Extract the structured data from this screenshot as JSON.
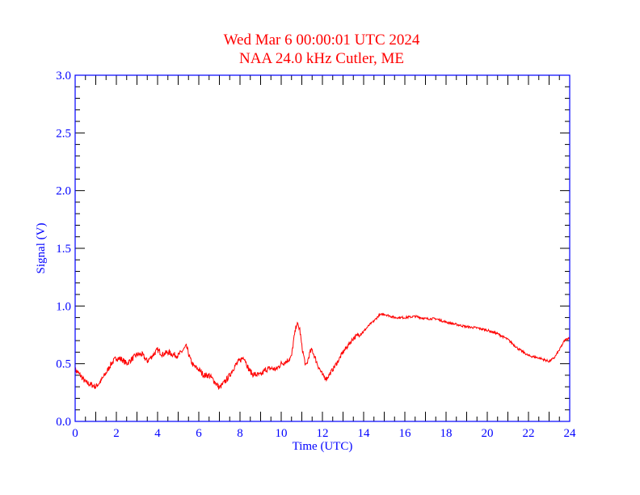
{
  "chart_data": {
    "type": "line",
    "title": "Wed Mar 6 00:00:01 UTC 2024",
    "subtitle": "NAA 24.0 kHz Cutler, ME",
    "xlabel": "Time (UTC)",
    "ylabel": "Signal (V)",
    "xlim": [
      0,
      24
    ],
    "ylim": [
      0,
      3.0
    ],
    "xticks": [
      "0",
      "2",
      "4",
      "6",
      "8",
      "10",
      "12",
      "14",
      "16",
      "18",
      "20",
      "22",
      "24"
    ],
    "yticks": [
      "0.0",
      "0.5",
      "1.0",
      "1.5",
      "2.0",
      "2.5",
      "3.0"
    ],
    "grid": false,
    "colors": {
      "line": "#ff0000",
      "title": "#ff0000",
      "axis": "#0000ff",
      "ticks": "#000000"
    },
    "series": [
      {
        "name": "NAA signal",
        "x": [
          0,
          0.25,
          0.5,
          0.75,
          1.0,
          1.25,
          1.5,
          1.75,
          2.0,
          2.25,
          2.5,
          2.75,
          3.0,
          3.25,
          3.5,
          3.75,
          4.0,
          4.25,
          4.5,
          4.75,
          5.0,
          5.25,
          5.4,
          5.6,
          5.75,
          6.0,
          6.25,
          6.5,
          6.75,
          7.0,
          7.25,
          7.5,
          7.75,
          8.0,
          8.2,
          8.4,
          8.6,
          9.0,
          9.25,
          9.5,
          9.75,
          10.0,
          10.25,
          10.5,
          10.6,
          10.75,
          10.9,
          11.0,
          11.2,
          11.4,
          11.5,
          11.75,
          12.0,
          12.2,
          12.5,
          12.75,
          13.0,
          13.25,
          13.5,
          13.75,
          14.0,
          14.25,
          14.5,
          14.75,
          15.0,
          15.5,
          16.0,
          16.5,
          17.0,
          17.5,
          18.0,
          18.5,
          19.0,
          19.5,
          20.0,
          20.5,
          21.0,
          21.5,
          22.0,
          22.5,
          23.0,
          23.25,
          23.5,
          23.75,
          24.0
        ],
        "y": [
          0.45,
          0.4,
          0.34,
          0.32,
          0.3,
          0.35,
          0.42,
          0.5,
          0.55,
          0.54,
          0.5,
          0.54,
          0.58,
          0.58,
          0.52,
          0.57,
          0.62,
          0.58,
          0.6,
          0.58,
          0.57,
          0.62,
          0.65,
          0.53,
          0.48,
          0.45,
          0.4,
          0.4,
          0.35,
          0.29,
          0.34,
          0.4,
          0.48,
          0.53,
          0.56,
          0.46,
          0.41,
          0.4,
          0.45,
          0.46,
          0.45,
          0.5,
          0.52,
          0.56,
          0.7,
          0.85,
          0.8,
          0.65,
          0.47,
          0.6,
          0.62,
          0.5,
          0.4,
          0.37,
          0.45,
          0.52,
          0.6,
          0.66,
          0.72,
          0.75,
          0.78,
          0.83,
          0.87,
          0.92,
          0.93,
          0.9,
          0.9,
          0.91,
          0.89,
          0.89,
          0.86,
          0.84,
          0.82,
          0.81,
          0.79,
          0.76,
          0.71,
          0.63,
          0.57,
          0.55,
          0.52,
          0.55,
          0.62,
          0.7,
          0.73
        ]
      }
    ]
  }
}
